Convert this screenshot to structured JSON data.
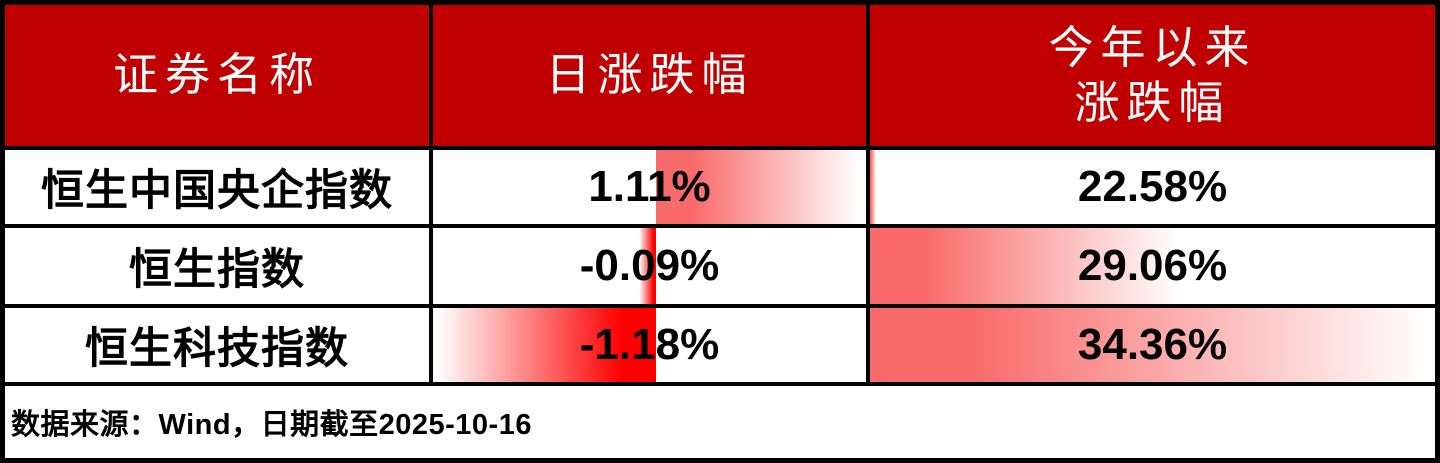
{
  "header": {
    "security_name": "证券名称",
    "daily_change": "日涨跌幅",
    "ytd_change_line1": "今年以来",
    "ytd_change_line2": "涨跌幅"
  },
  "rows": [
    {
      "name": "恒生中国央企指数",
      "daily_label": "1.11%",
      "daily_value": 1.11,
      "ytd_label": "22.58%",
      "ytd_value": 22.58
    },
    {
      "name": "恒生指数",
      "daily_label": "-0.09%",
      "daily_value": -0.09,
      "ytd_label": "29.06%",
      "ytd_value": 29.06
    },
    {
      "name": "恒生科技指数",
      "daily_label": "-1.18%",
      "daily_value": -1.18,
      "ytd_label": "34.36%",
      "ytd_value": 34.36
    }
  ],
  "footer": {
    "source_note": "数据来源：Wind，日期截至2025-10-16"
  },
  "colors": {
    "header_bg": "#c00000",
    "header_text": "#ffffff",
    "positive_bar": "#f96b6b",
    "negative_bar": "#fe0000",
    "bar_fade": "#ffffff",
    "border": "#000000",
    "body_text": "#000000"
  },
  "chart_data": {
    "type": "table",
    "title": "",
    "columns": [
      "证券名称",
      "日涨跌幅",
      "今年以来涨跌幅"
    ],
    "rows": [
      [
        "恒生中国央企指数",
        1.11,
        22.58
      ],
      [
        "恒生指数",
        -0.09,
        29.06
      ],
      [
        "恒生科技指数",
        -1.18,
        34.36
      ]
    ],
    "units": "percent",
    "note": "数据来源：Wind，日期截至2025-10-16",
    "databars": {
      "daily_change": {
        "style": "gradient",
        "axis": "auto-center",
        "positive_color": "#f96b6b",
        "negative_color": "#fe0000",
        "scale_min": -1.18,
        "scale_max": 1.11
      },
      "ytd_change": {
        "style": "gradient",
        "axis": "left",
        "positive_color": "#f96b6b",
        "scale_min": 22.58,
        "scale_max": 34.36
      }
    }
  }
}
